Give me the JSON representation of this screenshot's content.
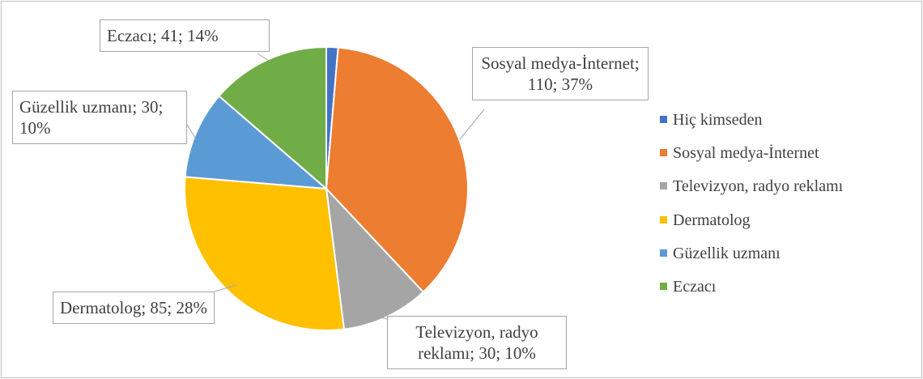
{
  "chart_data": {
    "type": "pie",
    "categories": [
      "Hiç kimseden",
      "Sosyal medya-İnternet",
      "Televizyon, radyo reklamı",
      "Dermatolog",
      "Güzellik uzmanı",
      "Eczacı"
    ],
    "values": [
      4,
      110,
      30,
      85,
      30,
      41
    ],
    "value_labels": [
      null,
      "Sosyal medya-İnternet; 110; 37%",
      "Televizyon, radyo reklamı; 30; 10%",
      "Dermatolog; 85; 28%",
      "Güzellik uzmanı; 30; 10%",
      "Eczacı; 41; 14%"
    ],
    "colors": [
      "#4472c4",
      "#ed7d31",
      "#a5a5a5",
      "#ffc000",
      "#5b9bd5",
      "#70ad47"
    ],
    "legend": "right"
  }
}
